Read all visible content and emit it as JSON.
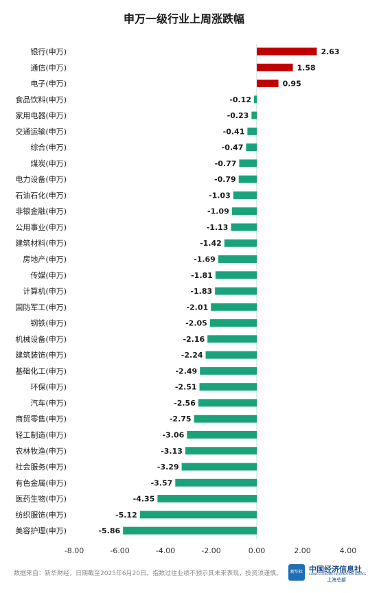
{
  "chart_data": {
    "type": "bar",
    "orientation": "horizontal",
    "title": "申万一级行业上周涨跌幅",
    "categories": [
      "银行(申万)",
      "通信(申万)",
      "电子(申万)",
      "食品饮料(申万)",
      "家用电器(申万)",
      "交通运输(申万)",
      "综合(申万)",
      "煤炭(申万)",
      "电力设备(申万)",
      "石油石化(申万)",
      "非银金融(申万)",
      "公用事业(申万)",
      "建筑材料(申万)",
      "房地产(申万)",
      "传媒(申万)",
      "计算机(申万)",
      "国防军工(申万)",
      "钢铁(申万)",
      "机械设备(申万)",
      "建筑装饰(申万)",
      "基础化工(申万)",
      "环保(申万)",
      "汽车(申万)",
      "商贸零售(申万)",
      "轻工制造(申万)",
      "农林牧渔(申万)",
      "社会服务(申万)",
      "有色金属(申万)",
      "医药生物(申万)",
      "纺织服饰(申万)",
      "美容护理(申万)"
    ],
    "values": [
      2.63,
      1.58,
      0.95,
      -0.12,
      -0.23,
      -0.41,
      -0.47,
      -0.77,
      -0.79,
      -1.03,
      -1.09,
      -1.13,
      -1.42,
      -1.69,
      -1.81,
      -1.83,
      -2.01,
      -2.05,
      -2.16,
      -2.24,
      -2.49,
      -2.51,
      -2.56,
      -2.75,
      -3.06,
      -3.13,
      -3.29,
      -3.57,
      -4.35,
      -5.12,
      -5.86
    ],
    "value_labels": [
      "2.63",
      "1.58",
      "0.95",
      "-0.12",
      "-0.23",
      "-0.41",
      "-0.47",
      "-0.77",
      "-0.79",
      "-1.03",
      "-1.09",
      "-1.13",
      "-1.42",
      "-1.69",
      "-1.81",
      "-1.83",
      "-2.01",
      "-2.05",
      "-2.16",
      "-2.24",
      "-2.49",
      "-2.51",
      "-2.56",
      "-2.75",
      "-3.06",
      "-3.13",
      "-3.29",
      "-3.57",
      "-4.35",
      "-5.12",
      "-5.86"
    ],
    "xlim": [
      -8,
      4
    ],
    "xticks": [
      -8,
      -6,
      -4,
      -2,
      0,
      2,
      4
    ],
    "xtick_labels": [
      "-8.00",
      "-6.00",
      "-4.00",
      "-2.00",
      "0.00",
      "2.00",
      "4.00"
    ],
    "grid": false,
    "legend": "none"
  },
  "colors": {
    "positive": "#c00000",
    "negative": "#1aa37a",
    "axis": "#d0d0d0"
  },
  "footer": {
    "source": "数据来自：新华财经，日期截至2025年6月20日。指数过往业绩不预示其未来表现，投资须谨慎。",
    "logo_badge": "新华社",
    "logo_name": "中国经济信息社",
    "logo_subtitle": "CHINA ECONOMIC INFORMATION SERVICE",
    "logo_branch": "上海总部"
  }
}
